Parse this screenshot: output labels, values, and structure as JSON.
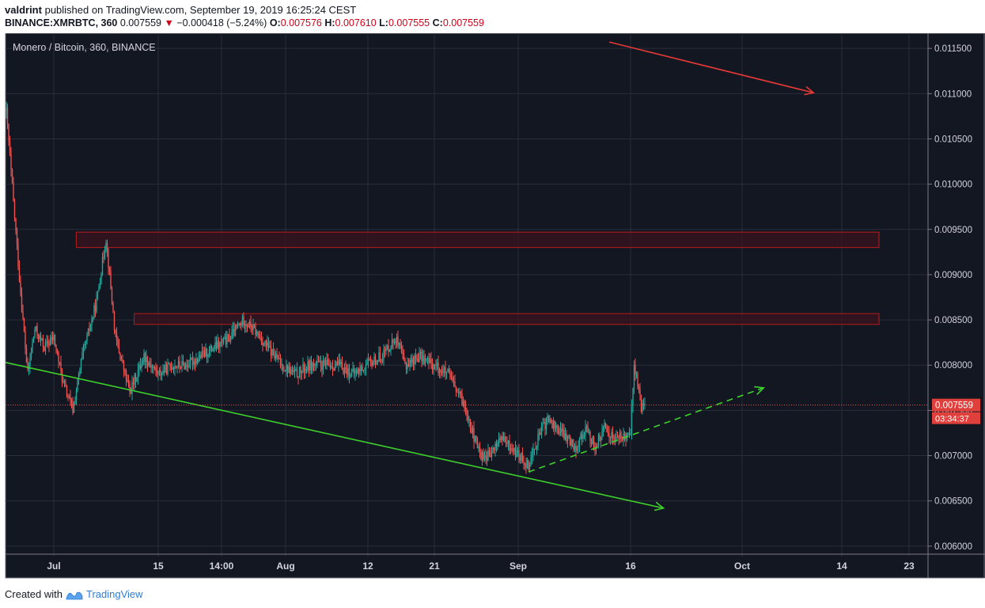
{
  "header": {
    "author": "valdrint",
    "published_text": "published on TradingView.com, September 19, 2019 16:25:24 CEST",
    "symbol": "BINANCE:XMRBTC, 360",
    "last": "0.007559",
    "change": "−0.000418 (−5.24%)",
    "o_label": "O:",
    "o_value": "0.007576",
    "h_label": "H:",
    "h_value": "0.007610",
    "l_label": "L:",
    "l_value": "0.007555",
    "c_label": "C:",
    "c_value": "0.007559"
  },
  "footer": {
    "created_with": "Created with",
    "brand": "TradingView"
  },
  "colors": {
    "background": "#131722",
    "grid": "#2a2e39",
    "up": "#26a69a",
    "down": "#ef5350",
    "zone_stroke": "#b71c1c",
    "zone_fill": "#3a1420",
    "red_arrow": "#e53935",
    "green_line": "#3dd12b"
  },
  "chart_data": {
    "type": "candlestick",
    "title": "Monero / Bitcoin, 360, BINANCE",
    "x_tick_labels": [
      "Jul",
      "15",
      "14:00",
      "Aug",
      "12",
      "21",
      "Sep",
      "16",
      "Oct",
      "14",
      "23"
    ],
    "y_ticks": [
      0.006,
      0.0065,
      0.007,
      0.0075,
      0.008,
      0.0085,
      0.009,
      0.0095,
      0.01,
      0.0105,
      0.011,
      0.0115
    ],
    "y_tick_labels": [
      "0.006000",
      "0.006500",
      "0.007000",
      "0.007500",
      "0.008000",
      "0.008500",
      "0.009000",
      "0.009500",
      "0.010000",
      "0.010500",
      "0.011000",
      "0.011500"
    ],
    "ylim": [
      0.00592,
      0.01165
    ],
    "last_price": "0.007559",
    "countdown": "03:34:37",
    "price_path": [
      [
        0.0,
        0.0108
      ],
      [
        1.5,
        0.0098
      ],
      [
        3.0,
        0.0088
      ],
      [
        4.5,
        0.0079
      ],
      [
        6.0,
        0.0084
      ],
      [
        8.0,
        0.0082
      ],
      [
        10.0,
        0.0083
      ],
      [
        12.0,
        0.0078
      ],
      [
        14.0,
        0.0075
      ],
      [
        16.0,
        0.0081
      ],
      [
        19.0,
        0.0087
      ],
      [
        21.0,
        0.0094
      ],
      [
        23.0,
        0.0083
      ],
      [
        26.0,
        0.0077
      ],
      [
        29.0,
        0.0081
      ],
      [
        32.0,
        0.0079
      ],
      [
        35.0,
        0.008
      ],
      [
        38.0,
        0.008
      ],
      [
        41.0,
        0.0081
      ],
      [
        44.0,
        0.0082
      ],
      [
        47.0,
        0.0083
      ],
      [
        50.0,
        0.0085
      ],
      [
        52.0,
        0.0084
      ],
      [
        55.0,
        0.0082
      ],
      [
        58.0,
        0.008
      ],
      [
        61.0,
        0.0079
      ],
      [
        64.0,
        0.008
      ],
      [
        67.0,
        0.008
      ],
      [
        70.0,
        0.008
      ],
      [
        73.0,
        0.0079
      ],
      [
        76.0,
        0.008
      ],
      [
        79.0,
        0.0081
      ],
      [
        82.0,
        0.0083
      ],
      [
        84.0,
        0.008
      ],
      [
        87.0,
        0.0081
      ],
      [
        90.0,
        0.008
      ],
      [
        93.0,
        0.0079
      ],
      [
        95.0,
        0.0077
      ],
      [
        97.0,
        0.0075
      ],
      [
        98.5,
        0.0072
      ],
      [
        100.0,
        0.007
      ],
      [
        102.0,
        0.007
      ],
      [
        104.0,
        0.0072
      ],
      [
        106.0,
        0.0071
      ],
      [
        108.0,
        0.007
      ],
      [
        110.0,
        0.0069
      ],
      [
        112.0,
        0.0072
      ],
      [
        114.0,
        0.0074
      ],
      [
        116.0,
        0.0073
      ],
      [
        118.0,
        0.0072
      ],
      [
        120.0,
        0.0071
      ],
      [
        122.0,
        0.0073
      ],
      [
        124.0,
        0.0071
      ],
      [
        126.0,
        0.0073
      ],
      [
        128.0,
        0.0072
      ],
      [
        130.0,
        0.0072
      ],
      [
        131.5,
        0.0073
      ],
      [
        132.3,
        0.008
      ],
      [
        133.0,
        0.0078
      ],
      [
        133.8,
        0.0075
      ],
      [
        134.5,
        0.0076
      ]
    ],
    "resistance_zones": [
      {
        "low": 0.0093,
        "high": 0.00947,
        "start": 14.9,
        "end": 184.0
      },
      {
        "low": 0.00845,
        "high": 0.00857,
        "start": 27.1,
        "end": 184.0
      }
    ],
    "trendlines": [
      {
        "name": "descending-support",
        "style": "solid",
        "color": "green",
        "from": [
          0.0,
          0.00803
        ],
        "to": [
          138.6,
          0.00642
        ]
      },
      {
        "name": "rising-support",
        "style": "dashed",
        "color": "green",
        "from": [
          110.2,
          0.00682
        ],
        "to": [
          159.7,
          0.00775
        ]
      },
      {
        "name": "downtrend-arrow",
        "style": "solid",
        "color": "red",
        "from": [
          127.2,
          0.01157
        ],
        "to": [
          170.2,
          0.01101
        ]
      }
    ]
  }
}
